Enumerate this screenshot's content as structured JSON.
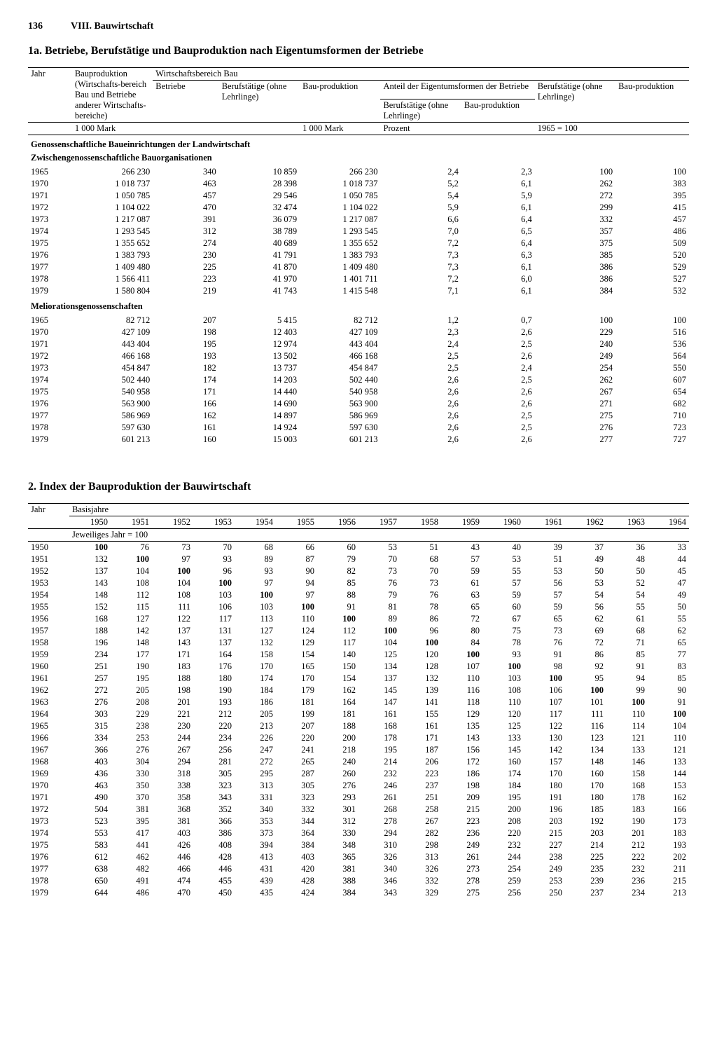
{
  "page": {
    "number": "136",
    "chapter": "VIII. Bauwirtschaft"
  },
  "table1": {
    "title": "1a. Betriebe, Berufstätige und Bauproduktion nach Eigentumsformen der Betriebe",
    "headers": {
      "jahr": "Jahr",
      "bauproduktion_long": "Bauproduktion (Wirtschafts-bereich Bau und Betriebe anderer Wirtschafts-bereiche)",
      "wirtschaftsbereich": "Wirtschaftsbereich Bau",
      "betriebe": "Betriebe",
      "beruf": "Berufstätige (ohne Lehrlinge)",
      "bauprod": "Bau-produktion",
      "anteil": "Anteil der Eigentumsformen der Betriebe",
      "beruf2": "Berufstätige (ohne Lehrlinge)",
      "bauprod2": "Bau-produktion",
      "unit_mark": "1 000 Mark",
      "unit_prozent": "Prozent",
      "unit_index": "1965 = 100"
    },
    "section1_label": "Genossenschaftliche Baueinrichtungen der Landwirtschaft",
    "section1_sub": "Zwischengenossenschaftliche Bauorganisationen",
    "section1_rows": [
      [
        "1965",
        "266 230",
        "340",
        "10 859",
        "266 230",
        "2,4",
        "2,3",
        "100",
        "100"
      ],
      [
        "1970",
        "1 018 737",
        "463",
        "28 398",
        "1 018 737",
        "5,2",
        "6,1",
        "262",
        "383"
      ],
      [
        "1971",
        "1 050 785",
        "457",
        "29 546",
        "1 050 785",
        "5,4",
        "5,9",
        "272",
        "395"
      ],
      [
        "1972",
        "1 104 022",
        "470",
        "32 474",
        "1 104 022",
        "5,9",
        "6,1",
        "299",
        "415"
      ],
      [
        "1973",
        "1 217 087",
        "391",
        "36 079",
        "1 217 087",
        "6,6",
        "6,4",
        "332",
        "457"
      ],
      [
        "1974",
        "1 293 545",
        "312",
        "38 789",
        "1 293 545",
        "7,0",
        "6,5",
        "357",
        "486"
      ],
      [
        "1975",
        "1 355 652",
        "274",
        "40 689",
        "1 355 652",
        "7,2",
        "6,4",
        "375",
        "509"
      ],
      [
        "1976",
        "1 383 793",
        "230",
        "41 791",
        "1 383 793",
        "7,3",
        "6,3",
        "385",
        "520"
      ],
      [
        "1977",
        "1 409 480",
        "225",
        "41 870",
        "1 409 480",
        "7,3",
        "6,1",
        "386",
        "529"
      ],
      [
        "1978",
        "1 566 411",
        "223",
        "41 970",
        "1 401 711",
        "7,2",
        "6,0",
        "386",
        "527"
      ],
      [
        "1979",
        "1 580 804",
        "219",
        "41 743",
        "1 415 548",
        "7,1",
        "6,1",
        "384",
        "532"
      ]
    ],
    "section2_label": "Meliorationsgenossenschaften",
    "section2_rows": [
      [
        "1965",
        "82 712",
        "207",
        "5 415",
        "82 712",
        "1,2",
        "0,7",
        "100",
        "100"
      ],
      [
        "1970",
        "427 109",
        "198",
        "12 403",
        "427 109",
        "2,3",
        "2,6",
        "229",
        "516"
      ],
      [
        "1971",
        "443 404",
        "195",
        "12 974",
        "443 404",
        "2,4",
        "2,5",
        "240",
        "536"
      ],
      [
        "1972",
        "466 168",
        "193",
        "13 502",
        "466 168",
        "2,5",
        "2,6",
        "249",
        "564"
      ],
      [
        "1973",
        "454 847",
        "182",
        "13 737",
        "454 847",
        "2,5",
        "2,4",
        "254",
        "550"
      ],
      [
        "1974",
        "502 440",
        "174",
        "14 203",
        "502 440",
        "2,6",
        "2,5",
        "262",
        "607"
      ],
      [
        "1975",
        "540 958",
        "171",
        "14 440",
        "540 958",
        "2,6",
        "2,6",
        "267",
        "654"
      ],
      [
        "1976",
        "563 900",
        "166",
        "14 690",
        "563 900",
        "2,6",
        "2,6",
        "271",
        "682"
      ],
      [
        "1977",
        "586 969",
        "162",
        "14 897",
        "586 969",
        "2,6",
        "2,5",
        "275",
        "710"
      ],
      [
        "1978",
        "597 630",
        "161",
        "14 924",
        "597 630",
        "2,6",
        "2,5",
        "276",
        "723"
      ],
      [
        "1979",
        "601 213",
        "160",
        "15 003",
        "601 213",
        "2,6",
        "2,6",
        "277",
        "727"
      ]
    ]
  },
  "table2": {
    "title": "2. Index der Bauproduktion der Bauwirtschaft",
    "headers": {
      "jahr": "Jahr",
      "basis": "Basisjahre",
      "unit": "Jeweiliges Jahr = 100"
    },
    "year_cols": [
      "1950",
      "1951",
      "1952",
      "1953",
      "1954",
      "1955",
      "1956",
      "1957",
      "1958",
      "1959",
      "1960",
      "1961",
      "1962",
      "1963",
      "1964"
    ],
    "rows": [
      [
        "1950",
        "100",
        "76",
        "73",
        "70",
        "68",
        "66",
        "60",
        "53",
        "51",
        "43",
        "40",
        "39",
        "37",
        "36",
        "33"
      ],
      [
        "1951",
        "132",
        "100",
        "97",
        "93",
        "89",
        "87",
        "79",
        "70",
        "68",
        "57",
        "53",
        "51",
        "49",
        "48",
        "44"
      ],
      [
        "1952",
        "137",
        "104",
        "100",
        "96",
        "93",
        "90",
        "82",
        "73",
        "70",
        "59",
        "55",
        "53",
        "50",
        "50",
        "45"
      ],
      [
        "1953",
        "143",
        "108",
        "104",
        "100",
        "97",
        "94",
        "85",
        "76",
        "73",
        "61",
        "57",
        "56",
        "53",
        "52",
        "47"
      ],
      [
        "1954",
        "148",
        "112",
        "108",
        "103",
        "100",
        "97",
        "88",
        "79",
        "76",
        "63",
        "59",
        "57",
        "54",
        "54",
        "49"
      ],
      [
        "1955",
        "152",
        "115",
        "111",
        "106",
        "103",
        "100",
        "91",
        "81",
        "78",
        "65",
        "60",
        "59",
        "56",
        "55",
        "50"
      ],
      [
        "1956",
        "168",
        "127",
        "122",
        "117",
        "113",
        "110",
        "100",
        "89",
        "86",
        "72",
        "67",
        "65",
        "62",
        "61",
        "55"
      ],
      [
        "1957",
        "188",
        "142",
        "137",
        "131",
        "127",
        "124",
        "112",
        "100",
        "96",
        "80",
        "75",
        "73",
        "69",
        "68",
        "62"
      ],
      [
        "1958",
        "196",
        "148",
        "143",
        "137",
        "132",
        "129",
        "117",
        "104",
        "100",
        "84",
        "78",
        "76",
        "72",
        "71",
        "65"
      ],
      [
        "1959",
        "234",
        "177",
        "171",
        "164",
        "158",
        "154",
        "140",
        "125",
        "120",
        "100",
        "93",
        "91",
        "86",
        "85",
        "77"
      ],
      [
        "1960",
        "251",
        "190",
        "183",
        "176",
        "170",
        "165",
        "150",
        "134",
        "128",
        "107",
        "100",
        "98",
        "92",
        "91",
        "83"
      ],
      [
        "1961",
        "257",
        "195",
        "188",
        "180",
        "174",
        "170",
        "154",
        "137",
        "132",
        "110",
        "103",
        "100",
        "95",
        "94",
        "85"
      ],
      [
        "1962",
        "272",
        "205",
        "198",
        "190",
        "184",
        "179",
        "162",
        "145",
        "139",
        "116",
        "108",
        "106",
        "100",
        "99",
        "90"
      ],
      [
        "1963",
        "276",
        "208",
        "201",
        "193",
        "186",
        "181",
        "164",
        "147",
        "141",
        "118",
        "110",
        "107",
        "101",
        "100",
        "91"
      ],
      [
        "1964",
        "303",
        "229",
        "221",
        "212",
        "205",
        "199",
        "181",
        "161",
        "155",
        "129",
        "120",
        "117",
        "111",
        "110",
        "100"
      ],
      [
        "1965",
        "315",
        "238",
        "230",
        "220",
        "213",
        "207",
        "188",
        "168",
        "161",
        "135",
        "125",
        "122",
        "116",
        "114",
        "104"
      ],
      [
        "1966",
        "334",
        "253",
        "244",
        "234",
        "226",
        "220",
        "200",
        "178",
        "171",
        "143",
        "133",
        "130",
        "123",
        "121",
        "110"
      ],
      [
        "1967",
        "366",
        "276",
        "267",
        "256",
        "247",
        "241",
        "218",
        "195",
        "187",
        "156",
        "145",
        "142",
        "134",
        "133",
        "121"
      ],
      [
        "1968",
        "403",
        "304",
        "294",
        "281",
        "272",
        "265",
        "240",
        "214",
        "206",
        "172",
        "160",
        "157",
        "148",
        "146",
        "133"
      ],
      [
        "1969",
        "436",
        "330",
        "318",
        "305",
        "295",
        "287",
        "260",
        "232",
        "223",
        "186",
        "174",
        "170",
        "160",
        "158",
        "144"
      ],
      [
        "1970",
        "463",
        "350",
        "338",
        "323",
        "313",
        "305",
        "276",
        "246",
        "237",
        "198",
        "184",
        "180",
        "170",
        "168",
        "153"
      ],
      [
        "1971",
        "490",
        "370",
        "358",
        "343",
        "331",
        "323",
        "293",
        "261",
        "251",
        "209",
        "195",
        "191",
        "180",
        "178",
        "162"
      ],
      [
        "1972",
        "504",
        "381",
        "368",
        "352",
        "340",
        "332",
        "301",
        "268",
        "258",
        "215",
        "200",
        "196",
        "185",
        "183",
        "166"
      ],
      [
        "1973",
        "523",
        "395",
        "381",
        "366",
        "353",
        "344",
        "312",
        "278",
        "267",
        "223",
        "208",
        "203",
        "192",
        "190",
        "173"
      ],
      [
        "1974",
        "553",
        "417",
        "403",
        "386",
        "373",
        "364",
        "330",
        "294",
        "282",
        "236",
        "220",
        "215",
        "203",
        "201",
        "183"
      ],
      [
        "1975",
        "583",
        "441",
        "426",
        "408",
        "394",
        "384",
        "348",
        "310",
        "298",
        "249",
        "232",
        "227",
        "214",
        "212",
        "193"
      ],
      [
        "1976",
        "612",
        "462",
        "446",
        "428",
        "413",
        "403",
        "365",
        "326",
        "313",
        "261",
        "244",
        "238",
        "225",
        "222",
        "202"
      ],
      [
        "1977",
        "638",
        "482",
        "466",
        "446",
        "431",
        "420",
        "381",
        "340",
        "326",
        "273",
        "254",
        "249",
        "235",
        "232",
        "211"
      ],
      [
        "1978",
        "650",
        "491",
        "474",
        "455",
        "439",
        "428",
        "388",
        "346",
        "332",
        "278",
        "259",
        "253",
        "239",
        "236",
        "215"
      ],
      [
        "1979",
        "644",
        "486",
        "470",
        "450",
        "435",
        "424",
        "384",
        "343",
        "329",
        "275",
        "256",
        "250",
        "237",
        "234",
        "213"
      ]
    ]
  }
}
